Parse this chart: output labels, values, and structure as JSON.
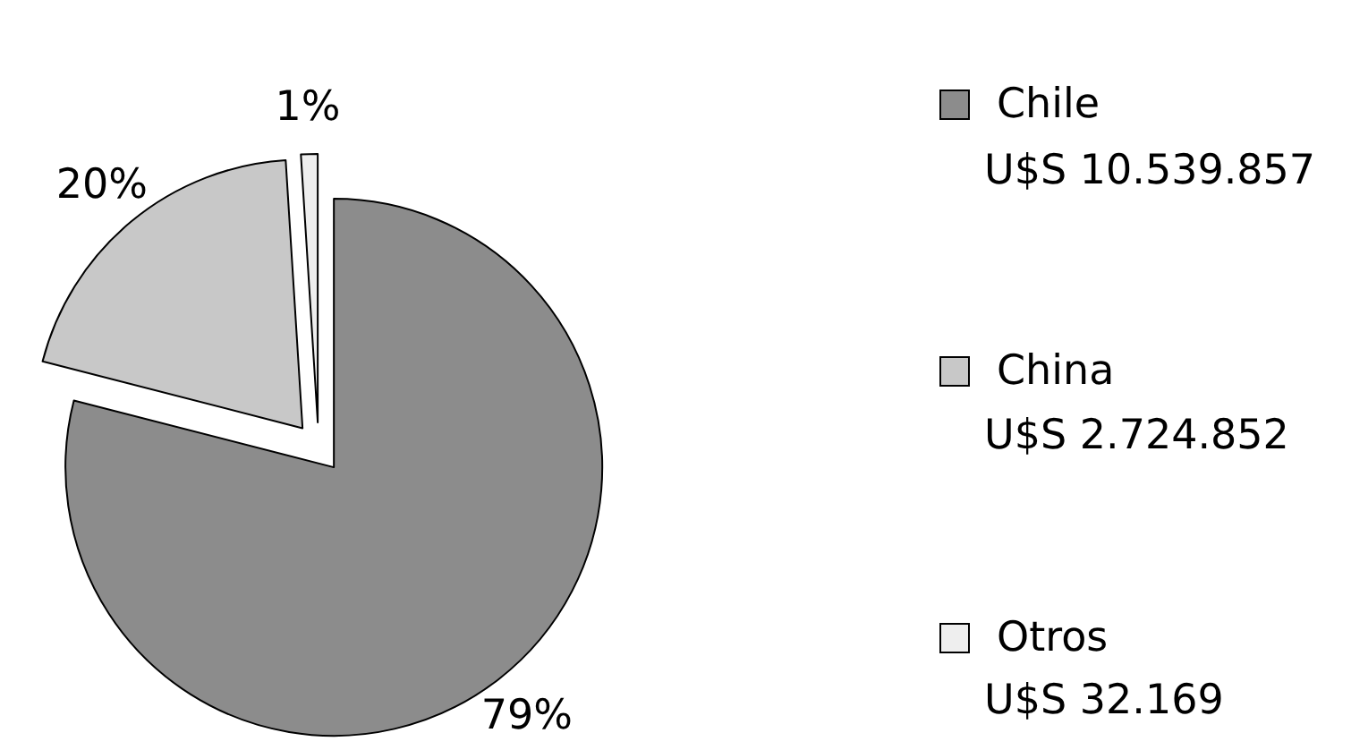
{
  "chart_data": {
    "type": "pie",
    "categories": [
      "Chile",
      "China",
      "Otros"
    ],
    "values": [
      79,
      20,
      1
    ],
    "colors": [
      "#8c8c8c",
      "#c8c8c8",
      "#eeeeee"
    ],
    "value_labels": [
      "79%",
      "20%",
      "1%"
    ],
    "annotations": [
      "U$S 10.539.857",
      "U$S 2.724.852",
      "U$S 32.169"
    ],
    "legend": "right"
  }
}
